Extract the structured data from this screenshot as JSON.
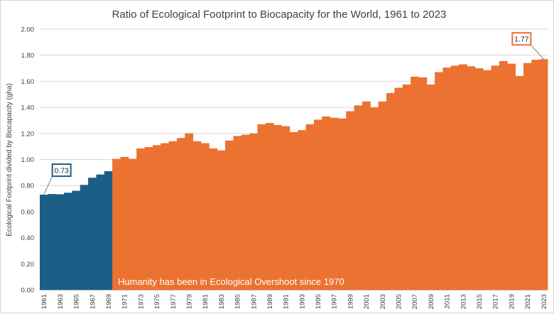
{
  "chart_data": {
    "type": "bar",
    "title": "Ratio of Ecological Footprint to Biocapacity for the World,  1961 to 2023",
    "xlabel": "",
    "ylabel": "Ecological Footprint divided by Biocapacity (gha)",
    "ylim": [
      0,
      2.0
    ],
    "y_ticks": [
      "0.00",
      "0.20",
      "0.40",
      "0.60",
      "0.80",
      "1.00",
      "1.20",
      "1.40",
      "1.60",
      "1.80",
      "2.00"
    ],
    "grid": true,
    "x_tick_labels": [
      "1961",
      "1963",
      "1965",
      "1967",
      "1969",
      "1971",
      "1973",
      "1975",
      "1977",
      "1979",
      "1981",
      "1983",
      "1985",
      "1987",
      "1989",
      "1991",
      "1993",
      "1995",
      "1997",
      "1999",
      "2001",
      "2003",
      "2005",
      "2007",
      "2009",
      "2011",
      "2013",
      "2015",
      "2017",
      "2019",
      "2021",
      "2023"
    ],
    "categories": [
      "1961",
      "1962",
      "1963",
      "1964",
      "1965",
      "1966",
      "1967",
      "1968",
      "1969",
      "1970",
      "1971",
      "1972",
      "1973",
      "1974",
      "1975",
      "1976",
      "1977",
      "1978",
      "1979",
      "1980",
      "1981",
      "1982",
      "1983",
      "1984",
      "1985",
      "1986",
      "1987",
      "1988",
      "1989",
      "1990",
      "1991",
      "1992",
      "1993",
      "1994",
      "1995",
      "1996",
      "1997",
      "1998",
      "1999",
      "2000",
      "2001",
      "2002",
      "2003",
      "2004",
      "2005",
      "2006",
      "2007",
      "2008",
      "2009",
      "2010",
      "2011",
      "2012",
      "2013",
      "2014",
      "2015",
      "2016",
      "2017",
      "2018",
      "2019",
      "2020",
      "2021",
      "2022",
      "2023"
    ],
    "values": [
      0.73,
      0.735,
      0.733,
      0.745,
      0.76,
      0.805,
      0.86,
      0.885,
      0.91,
      1.005,
      1.02,
      1.005,
      1.085,
      1.095,
      1.11,
      1.125,
      1.14,
      1.165,
      1.2,
      1.14,
      1.125,
      1.085,
      1.07,
      1.145,
      1.18,
      1.19,
      1.2,
      1.27,
      1.28,
      1.265,
      1.255,
      1.21,
      1.225,
      1.27,
      1.305,
      1.33,
      1.32,
      1.315,
      1.37,
      1.415,
      1.445,
      1.4,
      1.445,
      1.51,
      1.55,
      1.575,
      1.635,
      1.63,
      1.575,
      1.67,
      1.705,
      1.72,
      1.73,
      1.715,
      1.7,
      1.685,
      1.72,
      1.755,
      1.735,
      1.64,
      1.74,
      1.765,
      1.77
    ],
    "overshoot_start_year": "1970",
    "colors": {
      "before_overshoot": "#1b5e86",
      "overshoot": "#ec7232",
      "grid": "#d9d9d9",
      "text": "#404040"
    },
    "annotations": [
      {
        "label": "0.73",
        "year": "1961",
        "border_color": "#1b5e86",
        "placement": "upper-right of first bar"
      },
      {
        "label": "1.77",
        "year": "2023",
        "border_color": "#ec7232",
        "placement": "upper-left of last bar"
      }
    ],
    "overlay_text": "Humanity has been in Ecological Overshoot since 1970"
  }
}
